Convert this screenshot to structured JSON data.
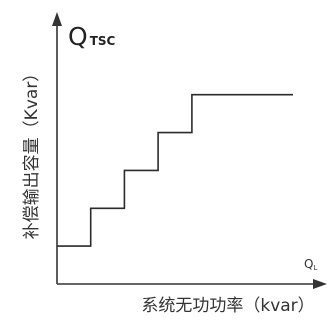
{
  "chart_data": {
    "type": "line",
    "step": true,
    "y_axis_symbol": "Q",
    "y_axis_symbol_subscript": "TSC",
    "x_axis_symbol": "Q",
    "x_axis_symbol_subscript": "L",
    "ylabel": "补偿输出容量（Kvar）",
    "xlabel": "系统无功功率（kvar）",
    "grid": false,
    "legend": "none",
    "series": [
      {
        "x": [
          0,
          1,
          1,
          2,
          2,
          3,
          3,
          4,
          4,
          7
        ],
        "y": [
          1,
          1,
          2,
          2,
          3,
          3,
          4,
          4,
          5,
          5
        ]
      }
    ],
    "xlim": [
      0,
      7.5
    ],
    "ylim": [
      0,
      7
    ]
  },
  "colors": {
    "axis": "#333333",
    "line": "#2b2b2b",
    "text": "#333333"
  }
}
